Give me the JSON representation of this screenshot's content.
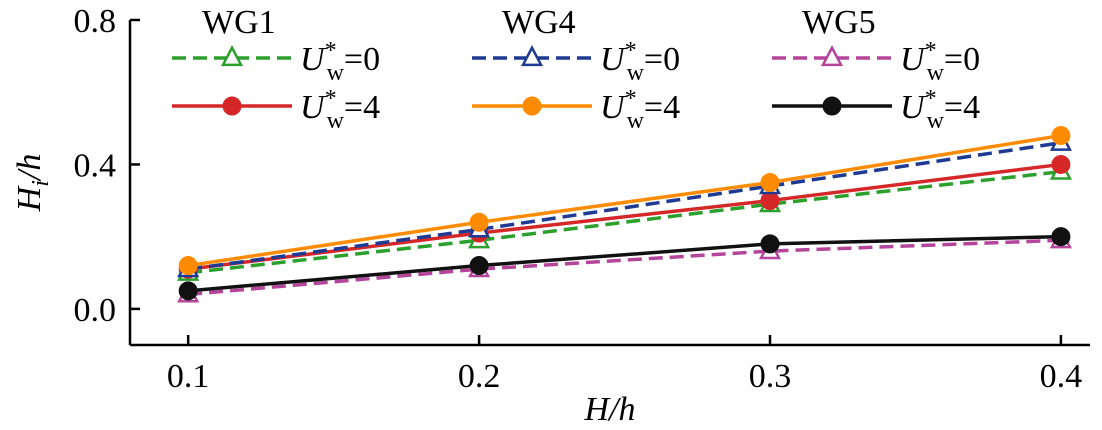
{
  "chart_data": {
    "type": "line",
    "x": [
      0.1,
      0.2,
      0.3,
      0.4
    ],
    "xlabel": "H/h",
    "ylabel": "Hi/h",
    "xlim": [
      0.08,
      0.41
    ],
    "ylim": [
      -0.1,
      0.8
    ],
    "xticks": [
      "0.1",
      "0.2",
      "0.3",
      "0.4"
    ],
    "yticks": [
      "0.0",
      "0.4",
      "0.8"
    ],
    "grid": false,
    "legend_position": "top",
    "legend_groups": [
      {
        "title": "WG1",
        "series": [
          0,
          1
        ]
      },
      {
        "title": "WG4",
        "series": [
          2,
          3
        ]
      },
      {
        "title": "WG5",
        "series": [
          4,
          5
        ]
      }
    ],
    "series": [
      {
        "name": "U*w=0",
        "group": "WG1",
        "values": [
          0.1,
          0.19,
          0.29,
          0.38
        ],
        "color": "#2ca02c",
        "dash": true,
        "marker": "triangle-open"
      },
      {
        "name": "U*w=4",
        "group": "WG1",
        "values": [
          0.11,
          0.21,
          0.3,
          0.4
        ],
        "color": "#d62728",
        "dash": false,
        "marker": "circle-filled"
      },
      {
        "name": "U*w=0",
        "group": "WG4",
        "values": [
          0.11,
          0.22,
          0.34,
          0.46
        ],
        "color": "#1f3a93",
        "dash": true,
        "marker": "triangle-open"
      },
      {
        "name": "U*w=4",
        "group": "WG4",
        "values": [
          0.12,
          0.24,
          0.35,
          0.48
        ],
        "color": "#ff8c00",
        "dash": false,
        "marker": "circle-filled"
      },
      {
        "name": "U*w=0",
        "group": "WG5",
        "values": [
          0.04,
          0.11,
          0.16,
          0.19
        ],
        "color": "#b5449b",
        "dash": true,
        "marker": "triangle-open"
      },
      {
        "name": "U*w=4",
        "group": "WG5",
        "values": [
          0.05,
          0.12,
          0.18,
          0.2
        ],
        "color": "#111111",
        "dash": false,
        "marker": "circle-filled"
      }
    ]
  }
}
